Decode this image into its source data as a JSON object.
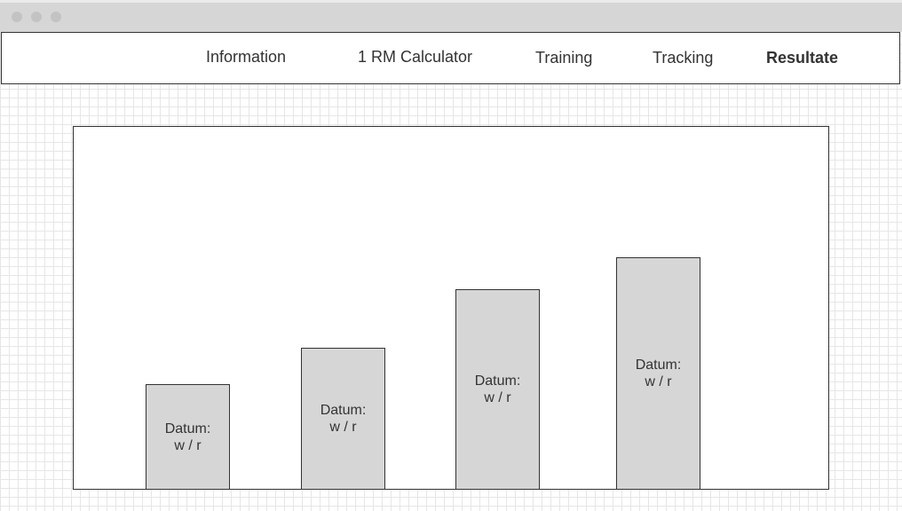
{
  "window": {
    "controls": [
      "close-dot",
      "minimize-dot",
      "maximize-dot"
    ]
  },
  "nav": {
    "items": [
      {
        "label": "Information",
        "active": false
      },
      {
        "label": "1 RM Calculator",
        "active": false
      },
      {
        "label": "Training",
        "active": false
      },
      {
        "label": "Tracking",
        "active": false
      },
      {
        "label": "Resultate",
        "active": true
      }
    ]
  },
  "chart_data": {
    "type": "bar",
    "categories": [
      "",
      "",
      "",
      ""
    ],
    "values": [
      29,
      39,
      55,
      64
    ],
    "ylim": [
      0,
      100
    ],
    "bar_labels": [
      {
        "line1": "Datum:",
        "line2": "w / r"
      },
      {
        "line1": "Datum:",
        "line2": "w / r"
      },
      {
        "line1": "Datum:",
        "line2": "w / r"
      },
      {
        "line1": "Datum:",
        "line2": "w / r"
      }
    ],
    "bar_color": "#d6d6d6",
    "grid": false
  }
}
